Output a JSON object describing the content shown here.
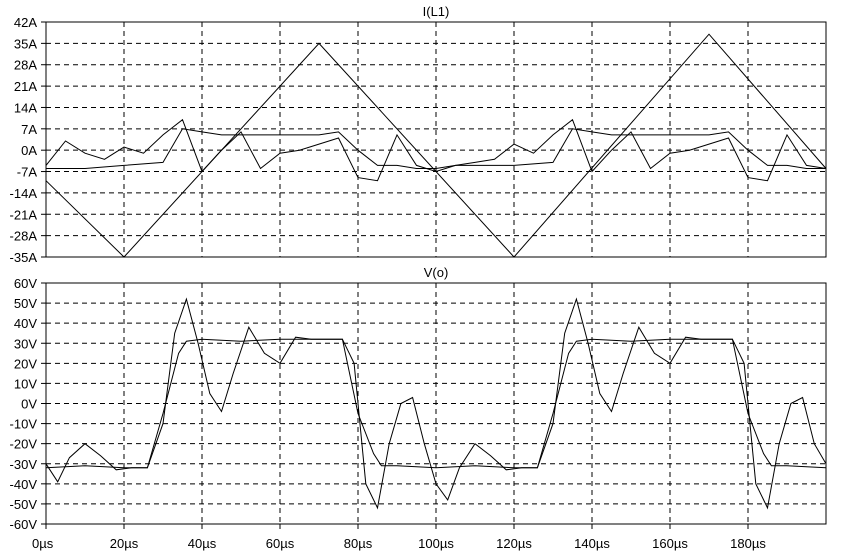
{
  "chart_data": [
    {
      "type": "line",
      "title": "I(L1)",
      "ylim": [
        -35,
        42
      ],
      "yticks": [
        "42A",
        "35A",
        "28A",
        "21A",
        "14A",
        "7A",
        "0A",
        "-7A",
        "-14A",
        "-21A",
        "-28A",
        "-35A"
      ],
      "ytick_values": [
        42,
        35,
        28,
        21,
        14,
        7,
        0,
        -7,
        -14,
        -21,
        -28,
        -35
      ],
      "xlim": [
        0,
        200
      ],
      "grid": true,
      "series": [
        {
          "x": [
            0,
            20,
            70,
            120,
            170,
            200
          ],
          "y": [
            -10,
            -35,
            35,
            -35,
            38,
            -6
          ]
        },
        {
          "x": [
            0,
            5,
            10,
            15,
            20,
            25,
            30,
            35,
            40,
            45,
            50,
            55,
            60,
            65,
            70,
            75,
            80,
            85,
            90,
            95,
            100,
            105,
            110,
            115,
            120,
            125,
            130,
            135,
            140,
            145,
            150,
            155,
            160,
            165,
            170,
            175,
            180,
            185,
            190,
            195,
            200
          ],
          "y": [
            -5,
            3,
            -1,
            -3,
            1,
            -1,
            5,
            10,
            -7,
            0,
            6,
            -6,
            -1,
            0,
            2,
            4,
            -9,
            -10,
            5,
            -5,
            -7,
            -5,
            -4,
            -3,
            2,
            -1,
            5,
            10,
            -7,
            0,
            6,
            -6,
            -1,
            0,
            2,
            4,
            -9,
            -10,
            5,
            -5,
            -6
          ]
        },
        {
          "x": [
            0,
            10,
            20,
            30,
            35,
            40,
            45,
            50,
            55,
            60,
            65,
            70,
            75,
            80,
            85,
            90,
            95,
            100,
            105,
            110,
            115,
            120,
            130,
            135,
            140,
            145,
            150,
            155,
            160,
            165,
            170,
            175,
            180,
            185,
            190,
            195,
            200
          ],
          "y": [
            -6,
            -6,
            -5,
            -4,
            7,
            6,
            5,
            5,
            5,
            5,
            5,
            5,
            6,
            0,
            -5,
            -5,
            -6,
            -6,
            -5,
            -5,
            -5,
            -5,
            -4,
            7,
            6,
            5,
            5,
            5,
            5,
            5,
            5,
            6,
            0,
            -5,
            -5,
            -6,
            -6
          ]
        }
      ]
    },
    {
      "type": "line",
      "title": "V(o)",
      "ylim": [
        -60,
        60
      ],
      "yticks": [
        "60V",
        "50V",
        "40V",
        "30V",
        "20V",
        "10V",
        "0V",
        "-10V",
        "-20V",
        "-30V",
        "-40V",
        "-50V",
        "-60V"
      ],
      "ytick_values": [
        60,
        50,
        40,
        30,
        20,
        10,
        0,
        -10,
        -20,
        -30,
        -40,
        -50,
        -60
      ],
      "xlim": [
        0,
        200
      ],
      "xticks": [
        "0µs",
        "20µs",
        "40µs",
        "60µs",
        "80µs",
        "100µs",
        "120µs",
        "140µs",
        "160µs",
        "180µs"
      ],
      "xtick_values": [
        0,
        20,
        40,
        60,
        80,
        100,
        120,
        140,
        160,
        180
      ],
      "grid": true,
      "series": [
        {
          "x": [
            0,
            3,
            6,
            10,
            14,
            18,
            22,
            26,
            30,
            33,
            36,
            39,
            42,
            45,
            48,
            52,
            56,
            60,
            64,
            68,
            72,
            76,
            79,
            82,
            85,
            88,
            91,
            94,
            97,
            100,
            103,
            106,
            110,
            114,
            118,
            122,
            126,
            130,
            133,
            136,
            139,
            142,
            145,
            148,
            152,
            156,
            160,
            164,
            168,
            172,
            176,
            179,
            182,
            185,
            188,
            191,
            194,
            197,
            200
          ],
          "y": [
            -30,
            -39,
            -27,
            -20,
            -26,
            -33,
            -32,
            -32,
            -10,
            35,
            52,
            30,
            5,
            -4,
            15,
            38,
            25,
            20,
            33,
            32,
            32,
            32,
            20,
            -40,
            -52,
            -20,
            0,
            3,
            -20,
            -40,
            -48,
            -32,
            -20,
            -26,
            -33,
            -32,
            -32,
            -10,
            35,
            52,
            30,
            5,
            -4,
            15,
            38,
            25,
            20,
            33,
            32,
            32,
            32,
            20,
            -40,
            -52,
            -20,
            0,
            3,
            -20,
            -30
          ]
        },
        {
          "x": [
            0,
            10,
            20,
            26,
            30,
            34,
            36,
            40,
            50,
            60,
            70,
            76,
            80,
            84,
            86,
            90,
            100,
            110,
            120,
            126,
            130,
            134,
            136,
            140,
            150,
            160,
            170,
            176,
            180,
            184,
            186,
            190,
            200
          ],
          "y": [
            -32,
            -31,
            -32,
            -32,
            -5,
            25,
            31,
            32,
            31,
            32,
            32,
            32,
            -5,
            -25,
            -31,
            -31,
            -32,
            -31,
            -32,
            -32,
            -5,
            25,
            31,
            32,
            31,
            32,
            32,
            32,
            -5,
            -25,
            -31,
            -31,
            -32
          ]
        }
      ]
    }
  ]
}
